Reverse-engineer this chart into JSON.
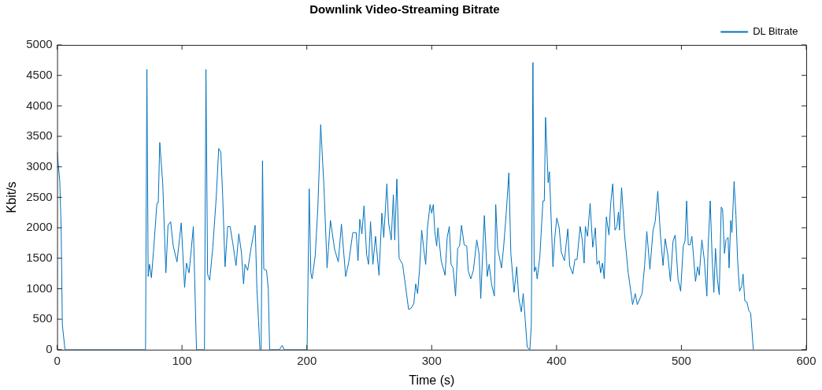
{
  "chart_data": {
    "type": "line",
    "title": "Downlink Video-Streaming Bitrate",
    "xlabel": "Time (s)",
    "ylabel": "Kbit/s",
    "legend": "top right",
    "grid": false,
    "marker": "none",
    "line_style": "solid",
    "xlim": [
      0,
      600
    ],
    "xticks": [
      0,
      100,
      200,
      300,
      400,
      500,
      600
    ],
    "ylim": [
      0,
      5000
    ],
    "yticks": [
      0,
      500,
      1000,
      1500,
      2000,
      2500,
      3000,
      3500,
      4000,
      4500,
      5000
    ],
    "series": [
      {
        "name": "DL Bitrate",
        "color": "#0072bd",
        "x": [
          0,
          2.1,
          3.2,
          4.2,
          6.3,
          70.8,
          71.9,
          72.9,
          74,
          75.5,
          77.2,
          79.9,
          81,
          82.2,
          84.6,
          87.1,
          88.8,
          90.9,
          93,
          96,
          99.4,
          102.1,
          103.6,
          105.7,
          109.1,
          111.6,
          118,
          119.2,
          120.5,
          122.2,
          124.7,
          127.5,
          129.4,
          131.1,
          132.6,
          134.5,
          136.6,
          138.5,
          140.6,
          143.3,
          145.5,
          147.6,
          149.3,
          150.5,
          152.6,
          155.4,
          158.6,
          160,
          161.3,
          162.4,
          163.4,
          164.5,
          165.5,
          167.7,
          169.1,
          170.2,
          178,
          180.3,
          181.8,
          200.2,
          201.9,
          203.2,
          204.2,
          206.7,
          208.8,
          211.1,
          213.7,
          216.2,
          218.9,
          222.3,
          225.2,
          227.7,
          231.1,
          233.6,
          236.8,
          239.5,
          241,
          242.4,
          244.1,
          245.8,
          247.9,
          249.4,
          251,
          252.9,
          255,
          257.8,
          260.1,
          261.6,
          264.1,
          265.5,
          267.6,
          269.3,
          270.4,
          272.1,
          273.9,
          276.7,
          278.8,
          281.5,
          283.6,
          285.7,
          287.2,
          288.7,
          290.3,
          292,
          293.7,
          295.2,
          296.6,
          298.7,
          300,
          301.3,
          302.5,
          304,
          305,
          307.6,
          310.7,
          312.4,
          314.1,
          315.5,
          317.2,
          319.1,
          320.8,
          322.3,
          323.9,
          326,
          328.1,
          329.2,
          331.3,
          333.4,
          336.1,
          338,
          339.3,
          340.8,
          342.2,
          344.5,
          346,
          348.1,
          350.2,
          351.3,
          352.9,
          355.9,
          357.6,
          359.7,
          361.8,
          363.4,
          366,
          368.1,
          369.8,
          371.8,
          373.3,
          374.8,
          376.5,
          378.6,
          379.8,
          381.1,
          382.1,
          383.4,
          384.5,
          386.6,
          389.1,
          390.2,
          391.2,
          393.3,
          394.3,
          397.1,
          398.6,
          400.2,
          402.1,
          403.8,
          406.3,
          409,
          410.5,
          413,
          414.7,
          416.4,
          418.9,
          420.6,
          422.1,
          423.1,
          424.8,
          426.9,
          429,
          431.1,
          432.4,
          434.2,
          435.3,
          436.8,
          438.2,
          439.9,
          442,
          443.3,
          445,
          446.8,
          448.3,
          449.6,
          450.4,
          452.1,
          454.6,
          457.4,
          458.8,
          460.9,
          463,
          464.7,
          466.8,
          468.5,
          470.6,
          472.3,
          474.8,
          477.3,
          479,
          481.1,
          483.2,
          485.3,
          487,
          489.1,
          491.2,
          493.3,
          495,
          497.3,
          499.4,
          501.5,
          502.9,
          504.2,
          505.5,
          507.1,
          508.4,
          509.9,
          511.3,
          513,
          514.3,
          516.4,
          518.3,
          520.4,
          521.4,
          523.1,
          524.6,
          526,
          527.3,
          528.8,
          530.3,
          531.9,
          533,
          534.5,
          535.7,
          537.4,
          538.2,
          539.5,
          540.5,
          542.2,
          543.7,
          545,
          546.6,
          548.3,
          549.4,
          550.8,
          552.5,
          554,
          555.5,
          557.6
        ],
        "values": [
          3245,
          2765,
          2000,
          400,
          0,
          0,
          4600,
          1200,
          1400,
          1180,
          1620,
          2400,
          2410,
          3400,
          2720,
          1260,
          2040,
          2100,
          1700,
          1440,
          2080,
          1020,
          1420,
          1260,
          2020,
          0,
          0,
          4600,
          1240,
          1140,
          1680,
          2520,
          3300,
          3240,
          2520,
          1360,
          2020,
          2020,
          1760,
          1380,
          1900,
          1600,
          1080,
          1400,
          1300,
          1680,
          2040,
          1000,
          480,
          0,
          0,
          3100,
          1320,
          1300,
          1000,
          0,
          0,
          70,
          0,
          0,
          2640,
          1260,
          1160,
          1540,
          2320,
          3690,
          2680,
          1340,
          2120,
          1640,
          1440,
          2060,
          1200,
          1440,
          1920,
          1920,
          1460,
          2140,
          1900,
          2360,
          1560,
          1400,
          2100,
          1400,
          1860,
          1220,
          2240,
          1840,
          2720,
          2080,
          1800,
          2540,
          1800,
          2800,
          1500,
          1400,
          1080,
          660,
          680,
          760,
          1080,
          920,
          1320,
          1960,
          1640,
          1400,
          2000,
          2380,
          2240,
          2380,
          1940,
          1700,
          2000,
          1460,
          1220,
          1840,
          2020,
          1400,
          1340,
          880,
          1660,
          1700,
          2040,
          1720,
          1700,
          1300,
          1160,
          1300,
          1800,
          1560,
          840,
          1560,
          2200,
          1200,
          1400,
          1060,
          880,
          2380,
          1660,
          1340,
          1680,
          2240,
          2900,
          1580,
          940,
          1360,
          840,
          620,
          920,
          520,
          40,
          0,
          400,
          4710,
          1280,
          1360,
          1160,
          1520,
          2440,
          2440,
          3810,
          2740,
          2920,
          1360,
          1840,
          2160,
          2000,
          1600,
          1460,
          1980,
          1380,
          1240,
          1480,
          1480,
          2020,
          1800,
          1420,
          2020,
          1860,
          2400,
          1680,
          2000,
          1400,
          1460,
          1260,
          1420,
          1160,
          2180,
          1880,
          2380,
          2720,
          1960,
          2020,
          2260,
          1960,
          2660,
          1860,
          1260,
          1060,
          740,
          920,
          740,
          840,
          920,
          1400,
          1940,
          1320,
          1960,
          2100,
          2600,
          1880,
          1380,
          1820,
          1560,
          1120,
          1780,
          1880,
          1160,
          960,
          1700,
          1780,
          2440,
          1720,
          1720,
          1860,
          1480,
          1120,
          1360,
          1220,
          1800,
          1480,
          880,
          1680,
          2440,
          1520,
          940,
          1660,
          1160,
          900,
          2340,
          2300,
          1580,
          1800,
          1840,
          1340,
          2120,
          1920,
          2760,
          2200,
          1480,
          960,
          1040,
          1240,
          800,
          780,
          640,
          600,
          0
        ]
      }
    ]
  }
}
